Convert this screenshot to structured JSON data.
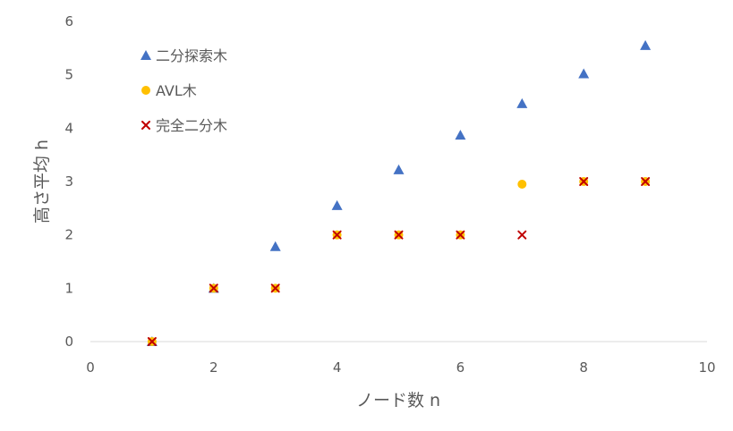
{
  "chart_data": {
    "type": "scatter",
    "xlabel": "ノード数 n",
    "ylabel": "高さ平均 h",
    "xlim": [
      0,
      10
    ],
    "ylim": [
      0,
      6
    ],
    "x_ticks": [
      "0",
      "2",
      "4",
      "6",
      "8",
      "10"
    ],
    "y_ticks": [
      "0",
      "1",
      "2",
      "3",
      "4",
      "5",
      "6"
    ],
    "grid": false,
    "legend_position": "top-left",
    "series": [
      {
        "name": "二分探索木",
        "marker": "triangle",
        "color": "#4472c4",
        "points": [
          [
            1,
            0
          ],
          [
            2,
            1
          ],
          [
            3,
            1.78
          ],
          [
            4,
            2.55
          ],
          [
            5,
            3.22
          ],
          [
            6,
            3.87
          ],
          [
            7,
            4.46
          ],
          [
            8,
            5.02
          ],
          [
            9,
            5.55
          ]
        ]
      },
      {
        "name": "AVL木",
        "marker": "circle",
        "color": "#ffc000",
        "points": [
          [
            1,
            0
          ],
          [
            2,
            1
          ],
          [
            3,
            1
          ],
          [
            4,
            2
          ],
          [
            5,
            2
          ],
          [
            6,
            2
          ],
          [
            7,
            2.95
          ],
          [
            8,
            3
          ],
          [
            9,
            3
          ]
        ]
      },
      {
        "name": "完全二分木",
        "marker": "x",
        "color": "#c00000",
        "points": [
          [
            1,
            0
          ],
          [
            2,
            1
          ],
          [
            3,
            1
          ],
          [
            4,
            2
          ],
          [
            5,
            2
          ],
          [
            6,
            2
          ],
          [
            7,
            2
          ],
          [
            8,
            3
          ],
          [
            9,
            3
          ]
        ]
      }
    ]
  }
}
